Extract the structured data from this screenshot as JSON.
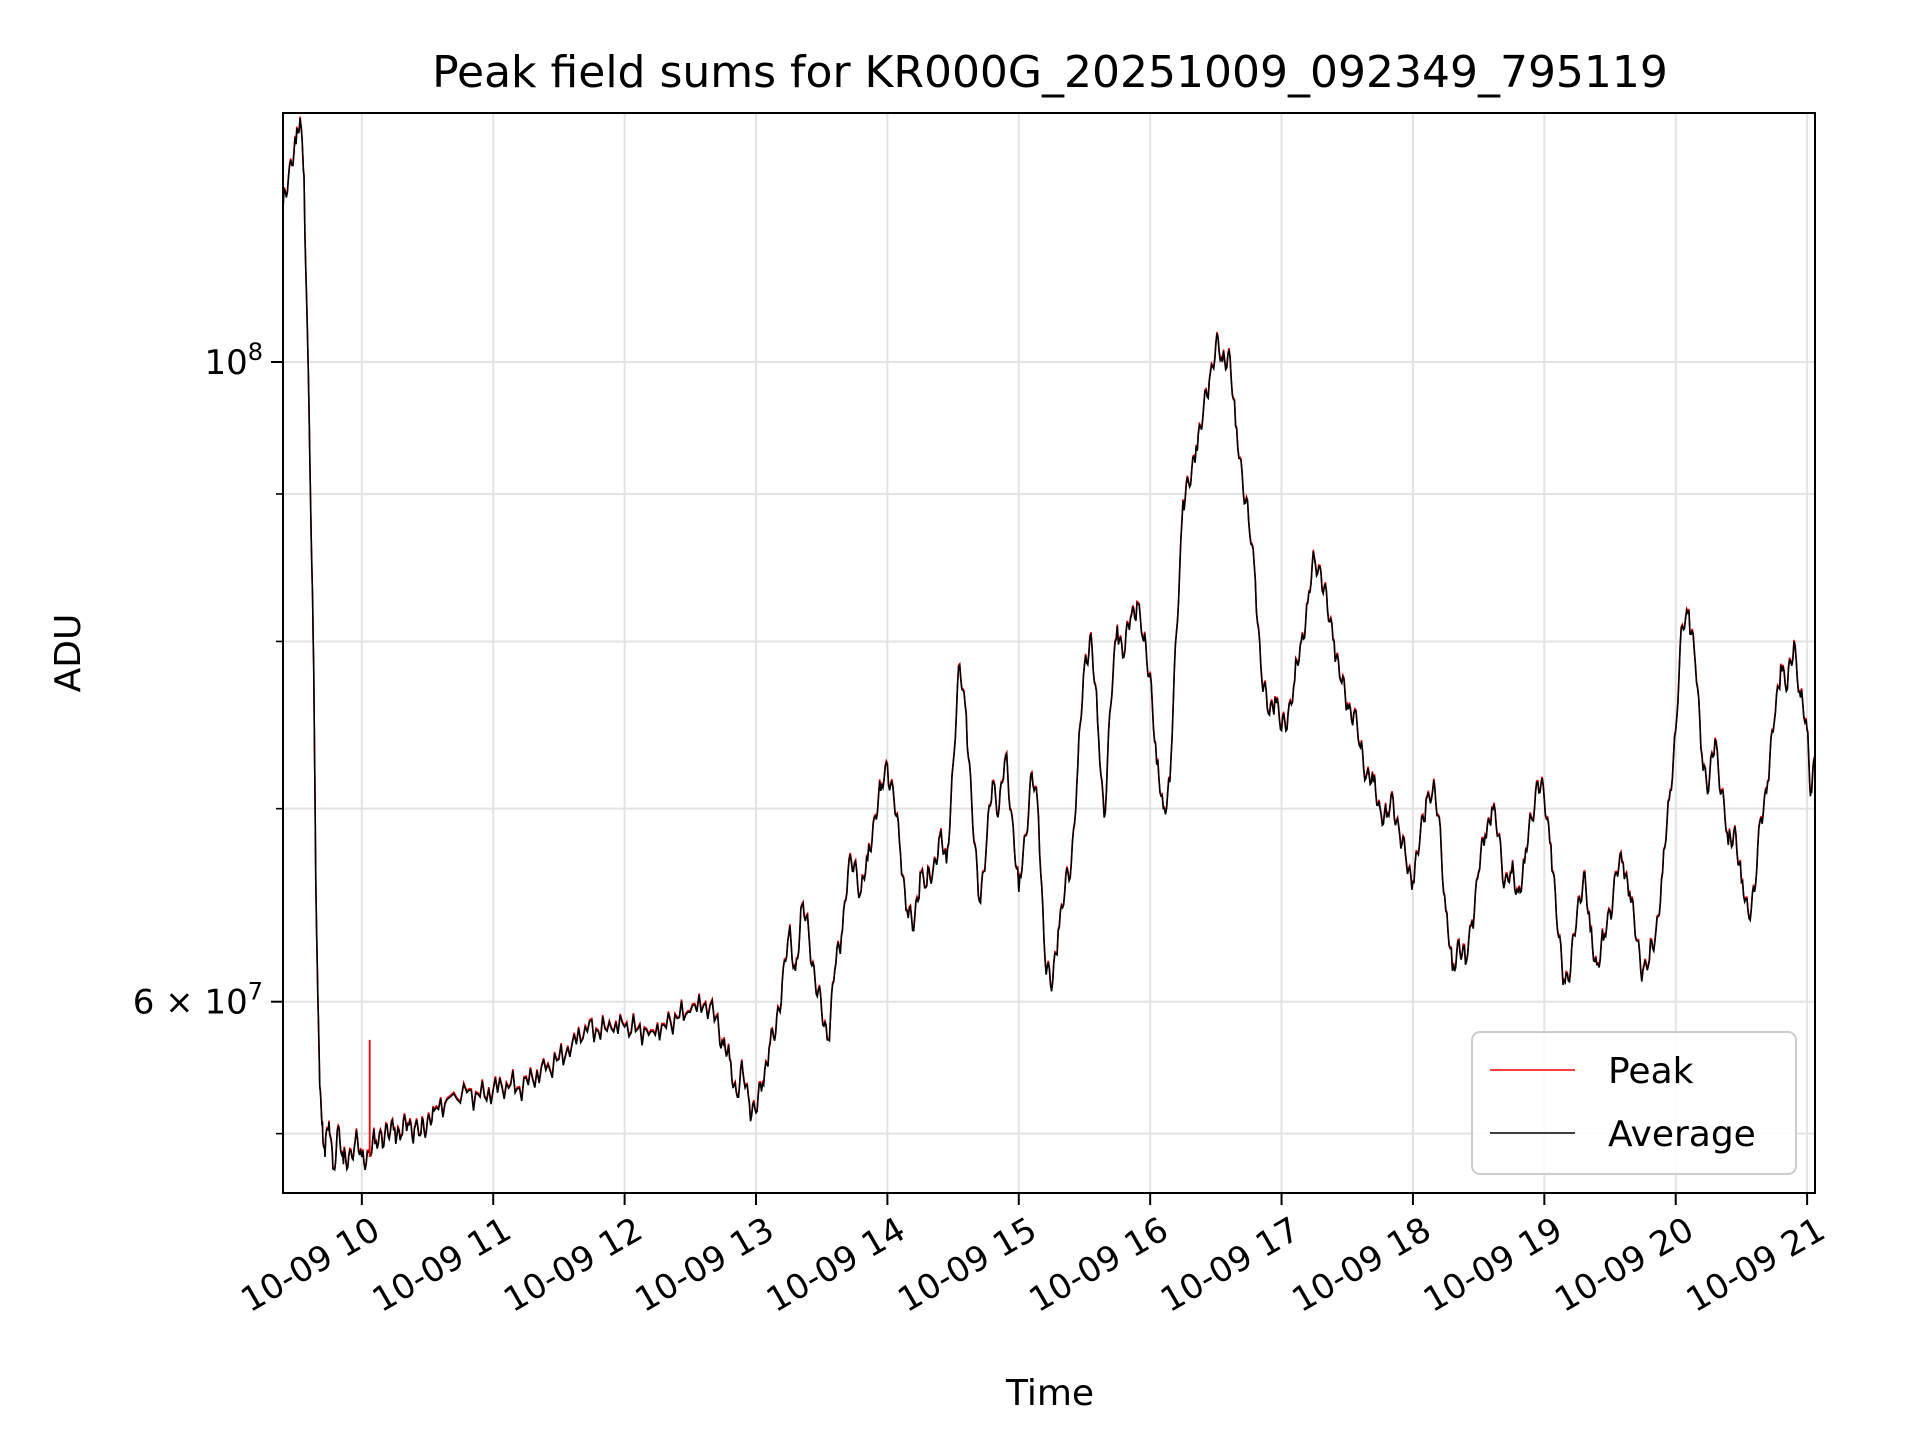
{
  "chart_data": {
    "type": "line",
    "title": "Peak field sums for KR000G_20251009_092349_795119",
    "xlabel": "Time",
    "ylabel": "ADU",
    "x_tick_labels": [
      "10-09 10",
      "10-09 11",
      "10-09 12",
      "10-09 13",
      "10-09 14",
      "10-09 15",
      "10-09 16",
      "10-09 17",
      "10-09 18",
      "10-09 19",
      "10-09 20",
      "10-09 21"
    ],
    "x_tick_hours": [
      10,
      11,
      12,
      13,
      14,
      15,
      16,
      17,
      18,
      19,
      20,
      21
    ],
    "xlim": [
      9.4,
      21.06
    ],
    "yscale": "log",
    "ylim": [
      51500000,
      122000000
    ],
    "y_major_ticks": [
      {
        "value": 100000000,
        "base": "10",
        "exp": "8"
      },
      {
        "value": 60000000,
        "mant": "6",
        "base": "10",
        "exp": "7"
      }
    ],
    "y_minor_ticks": [
      54000000,
      70000000,
      80000000,
      90000000
    ],
    "grid": true,
    "legend": {
      "location": "lower-right",
      "entries": [
        "Peak",
        "Average"
      ]
    },
    "colors": {
      "Peak": "#ff0000",
      "Average": "#000000"
    },
    "series": [
      {
        "name": "Average",
        "color": "#000000",
        "keypoints": [
          [
            9.4,
            113000000
          ],
          [
            9.45,
            117000000
          ],
          [
            9.5,
            119000000
          ],
          [
            9.53,
            121500000
          ],
          [
            9.56,
            116000000
          ],
          [
            9.6,
            95000000
          ],
          [
            9.63,
            80000000
          ],
          [
            9.65,
            66000000
          ],
          [
            9.68,
            56000000
          ],
          [
            9.7,
            54500000
          ],
          [
            9.72,
            53000000
          ],
          [
            9.75,
            54500000
          ],
          [
            9.78,
            52500000
          ],
          [
            9.82,
            54300000
          ],
          [
            9.86,
            52700000
          ],
          [
            9.9,
            53000000
          ],
          [
            9.95,
            53700000
          ],
          [
            10.0,
            53000000
          ],
          [
            10.05,
            53200000
          ],
          [
            10.1,
            53600000
          ],
          [
            10.15,
            54000000
          ],
          [
            10.2,
            53900000
          ],
          [
            10.25,
            54200000
          ],
          [
            10.3,
            53900000
          ],
          [
            10.35,
            54400000
          ],
          [
            10.4,
            54200000
          ],
          [
            10.45,
            54000000
          ],
          [
            10.5,
            54600000
          ],
          [
            10.55,
            55000000
          ],
          [
            10.65,
            55500000
          ],
          [
            10.8,
            55800000
          ],
          [
            10.9,
            55600000
          ],
          [
            11.0,
            55900000
          ],
          [
            11.1,
            56200000
          ],
          [
            11.2,
            56000000
          ],
          [
            11.3,
            56400000
          ],
          [
            11.4,
            56800000
          ],
          [
            11.5,
            57300000
          ],
          [
            11.6,
            58000000
          ],
          [
            11.7,
            58800000
          ],
          [
            11.8,
            58600000
          ],
          [
            11.9,
            58700000
          ],
          [
            12.0,
            58800000
          ],
          [
            12.1,
            58700000
          ],
          [
            12.2,
            58600000
          ],
          [
            12.3,
            58900000
          ],
          [
            12.4,
            59200000
          ],
          [
            12.5,
            59500000
          ],
          [
            12.6,
            59800000
          ],
          [
            12.7,
            59300000
          ],
          [
            12.75,
            58000000
          ],
          [
            12.8,
            57300000
          ],
          [
            12.85,
            55800000
          ],
          [
            12.9,
            56700000
          ],
          [
            12.95,
            55300000
          ],
          [
            13.0,
            54900000
          ],
          [
            13.05,
            56200000
          ],
          [
            13.1,
            57800000
          ],
          [
            13.15,
            58500000
          ],
          [
            13.2,
            61000000
          ],
          [
            13.25,
            63300000
          ],
          [
            13.3,
            61500000
          ],
          [
            13.35,
            64800000
          ],
          [
            13.4,
            63500000
          ],
          [
            13.45,
            61000000
          ],
          [
            13.5,
            59500000
          ],
          [
            13.55,
            58200000
          ],
          [
            13.6,
            61500000
          ],
          [
            13.65,
            63200000
          ],
          [
            13.7,
            66500000
          ],
          [
            13.75,
            67000000
          ],
          [
            13.8,
            65500000
          ],
          [
            13.85,
            67200000
          ],
          [
            13.9,
            69500000
          ],
          [
            13.95,
            71000000
          ],
          [
            14.0,
            72500000
          ],
          [
            14.05,
            70500000
          ],
          [
            14.1,
            67500000
          ],
          [
            14.15,
            64500000
          ],
          [
            14.2,
            63500000
          ],
          [
            14.25,
            66500000
          ],
          [
            14.3,
            65800000
          ],
          [
            14.35,
            66800000
          ],
          [
            14.4,
            68500000
          ],
          [
            14.45,
            67000000
          ],
          [
            14.5,
            72500000
          ],
          [
            14.55,
            78500000
          ],
          [
            14.6,
            75500000
          ],
          [
            14.65,
            69000000
          ],
          [
            14.7,
            65000000
          ],
          [
            14.75,
            67500000
          ],
          [
            14.8,
            71500000
          ],
          [
            14.85,
            70000000
          ],
          [
            14.9,
            73000000
          ],
          [
            14.95,
            69500000
          ],
          [
            15.0,
            65500000
          ],
          [
            15.05,
            68500000
          ],
          [
            15.1,
            72000000
          ],
          [
            15.15,
            69500000
          ],
          [
            15.2,
            62000000
          ],
          [
            15.25,
            60500000
          ],
          [
            15.3,
            63500000
          ],
          [
            15.35,
            65500000
          ],
          [
            15.4,
            67000000
          ],
          [
            15.45,
            72500000
          ],
          [
            15.5,
            78500000
          ],
          [
            15.55,
            80500000
          ],
          [
            15.6,
            75000000
          ],
          [
            15.65,
            69500000
          ],
          [
            15.7,
            76000000
          ],
          [
            15.75,
            81000000
          ],
          [
            15.8,
            79000000
          ],
          [
            15.85,
            81500000
          ],
          [
            15.9,
            82500000
          ],
          [
            15.95,
            80000000
          ],
          [
            16.0,
            78000000
          ],
          [
            16.05,
            72500000
          ],
          [
            16.1,
            70000000
          ],
          [
            16.15,
            71500000
          ],
          [
            16.2,
            80500000
          ],
          [
            16.25,
            89500000
          ],
          [
            16.3,
            90500000
          ],
          [
            16.35,
            93500000
          ],
          [
            16.4,
            95500000
          ],
          [
            16.45,
            98500000
          ],
          [
            16.5,
            101500000
          ],
          [
            16.55,
            100000000
          ],
          [
            16.6,
            101000000
          ],
          [
            16.65,
            95000000
          ],
          [
            16.7,
            91500000
          ],
          [
            16.75,
            88000000
          ],
          [
            16.8,
            84000000
          ],
          [
            16.85,
            77500000
          ],
          [
            16.9,
            75500000
          ],
          [
            16.95,
            76500000
          ],
          [
            17.0,
            74500000
          ],
          [
            17.05,
            75500000
          ],
          [
            17.1,
            77500000
          ],
          [
            17.15,
            80000000
          ],
          [
            17.2,
            82500000
          ],
          [
            17.25,
            85500000
          ],
          [
            17.3,
            84500000
          ],
          [
            17.35,
            82000000
          ],
          [
            17.4,
            80000000
          ],
          [
            17.45,
            77500000
          ],
          [
            17.5,
            76000000
          ],
          [
            17.55,
            75500000
          ],
          [
            17.6,
            73500000
          ],
          [
            17.65,
            72000000
          ],
          [
            17.7,
            71500000
          ],
          [
            17.75,
            70000000
          ],
          [
            17.8,
            69500000
          ],
          [
            17.85,
            70500000
          ],
          [
            17.9,
            68500000
          ],
          [
            17.95,
            67000000
          ],
          [
            18.0,
            66000000
          ],
          [
            18.05,
            68000000
          ],
          [
            18.1,
            70500000
          ],
          [
            18.15,
            71000000
          ],
          [
            18.2,
            69500000
          ],
          [
            18.25,
            64500000
          ],
          [
            18.3,
            61500000
          ],
          [
            18.35,
            63000000
          ],
          [
            18.4,
            61800000
          ],
          [
            18.45,
            64000000
          ],
          [
            18.5,
            66500000
          ],
          [
            18.55,
            68500000
          ],
          [
            18.6,
            70000000
          ],
          [
            18.65,
            68500000
          ],
          [
            18.7,
            66000000
          ],
          [
            18.75,
            66500000
          ],
          [
            18.8,
            65500000
          ],
          [
            18.85,
            67000000
          ],
          [
            18.9,
            69500000
          ],
          [
            18.95,
            71500000
          ],
          [
            19.0,
            70500000
          ],
          [
            19.05,
            68000000
          ],
          [
            19.1,
            63500000
          ],
          [
            19.15,
            61000000
          ],
          [
            19.2,
            61500000
          ],
          [
            19.25,
            64500000
          ],
          [
            19.3,
            66500000
          ],
          [
            19.35,
            63500000
          ],
          [
            19.4,
            61800000
          ],
          [
            19.45,
            63000000
          ],
          [
            19.5,
            64500000
          ],
          [
            19.55,
            66500000
          ],
          [
            19.6,
            67000000
          ],
          [
            19.65,
            65500000
          ],
          [
            19.7,
            63000000
          ],
          [
            19.75,
            61500000
          ],
          [
            19.8,
            62000000
          ],
          [
            19.85,
            63500000
          ],
          [
            19.9,
            66500000
          ],
          [
            19.95,
            70500000
          ],
          [
            20.0,
            74500000
          ],
          [
            20.05,
            81000000
          ],
          [
            20.1,
            82000000
          ],
          [
            20.15,
            78500000
          ],
          [
            20.2,
            73000000
          ],
          [
            20.25,
            71000000
          ],
          [
            20.3,
            74000000
          ],
          [
            20.35,
            71000000
          ],
          [
            20.4,
            68000000
          ],
          [
            20.45,
            69000000
          ],
          [
            20.5,
            66000000
          ],
          [
            20.55,
            64500000
          ],
          [
            20.6,
            65500000
          ],
          [
            20.65,
            69500000
          ],
          [
            20.7,
            71500000
          ],
          [
            20.75,
            75000000
          ],
          [
            20.8,
            78500000
          ],
          [
            20.85,
            77000000
          ],
          [
            20.9,
            80000000
          ],
          [
            20.95,
            76500000
          ],
          [
            21.0,
            74500000
          ],
          [
            21.03,
            71000000
          ],
          [
            21.06,
            73000000
          ]
        ]
      }
    ]
  }
}
